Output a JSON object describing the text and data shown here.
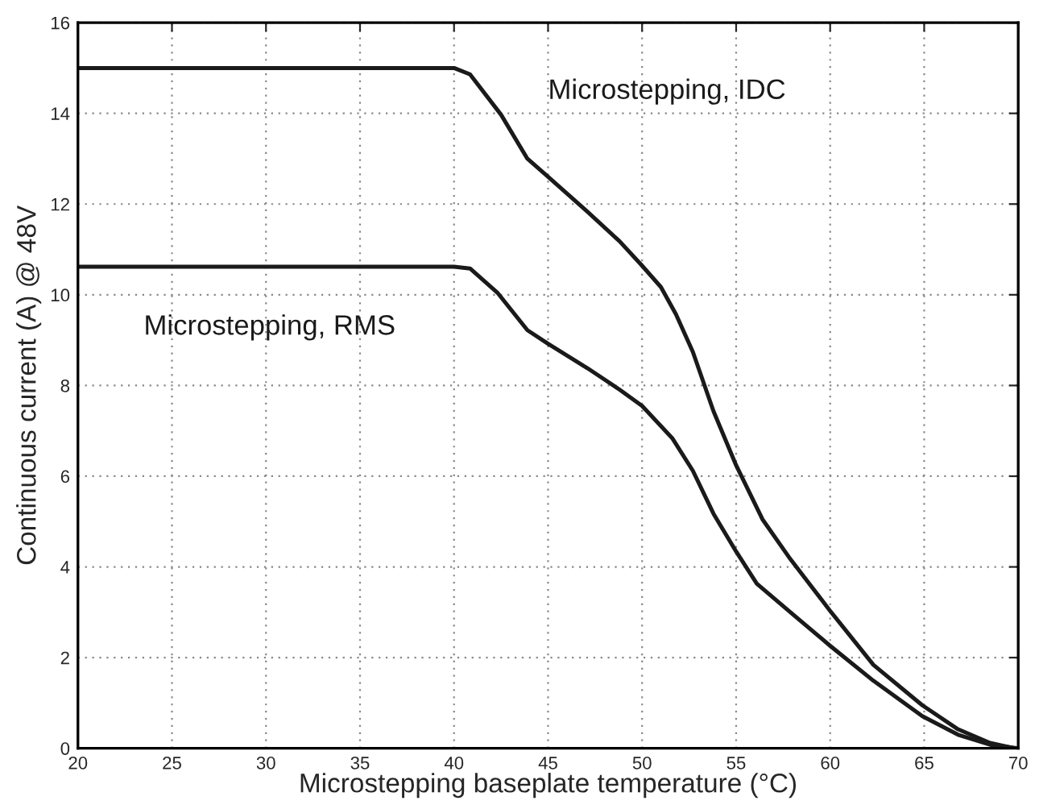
{
  "chart_data": {
    "type": "line",
    "xlabel": "Microstepping baseplate temperature (°C)",
    "ylabel": "Continuous current (A) @ 48V",
    "xlim": [
      20,
      70
    ],
    "xticks": [
      20,
      25,
      30,
      35,
      40,
      45,
      50,
      55,
      60,
      65,
      70
    ],
    "ylim": [
      0,
      16
    ],
    "yticks": [
      0,
      2,
      4,
      6,
      8,
      10,
      12,
      14,
      16
    ],
    "grid": true,
    "legend": false,
    "line_style": "solid",
    "marker": "none",
    "series": [
      {
        "name": "Microstepping, IDC",
        "color": "#1a1a1a",
        "x": [
          20,
          40,
          40.85,
          42.5,
          43.9,
          45,
          47.1,
          48.8,
          50,
          51,
          51.8,
          52.7,
          53.8,
          55,
          56.4,
          57.8,
          60,
          62.3,
          64.9,
          66.8,
          68.5,
          69.8
        ],
        "values": [
          15,
          15,
          14.86,
          13.97,
          13.0,
          12.6,
          11.83,
          11.18,
          10.64,
          10.17,
          9.57,
          8.74,
          7.43,
          6.24,
          5.05,
          4.22,
          3.03,
          1.84,
          0.95,
          0.42,
          0.12,
          0
        ]
      },
      {
        "name": "Microstepping, RMS",
        "color": "#1a1a1a",
        "x": [
          20,
          40,
          40.85,
          42.3,
          43.9,
          45,
          47.1,
          48.8,
          50,
          51.6,
          52.7,
          53.8,
          55,
          56.1,
          57.8,
          60,
          62.3,
          64.9,
          66.8,
          68.5,
          70
        ],
        "values": [
          10.62,
          10.62,
          10.58,
          10.05,
          9.22,
          8.92,
          8.38,
          7.91,
          7.55,
          6.84,
          6.12,
          5.17,
          4.34,
          3.63,
          3.03,
          2.26,
          1.49,
          0.71,
          0.3,
          0.08,
          0
        ]
      }
    ]
  }
}
